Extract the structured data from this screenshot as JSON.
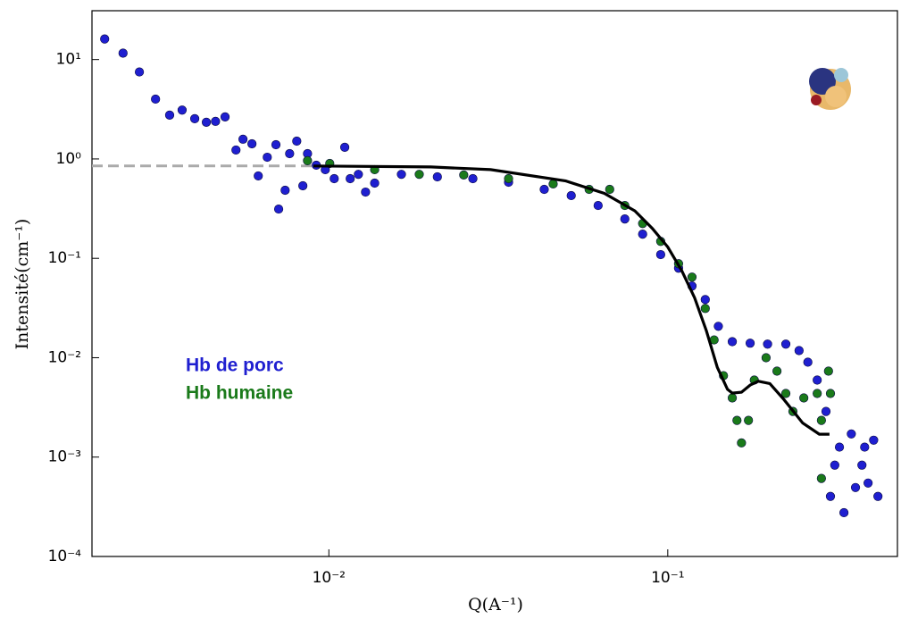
{
  "chart_data": {
    "type": "scatter",
    "xlabel": "Q(A⁻¹)",
    "ylabel": "Intensité(cm⁻¹)",
    "xscale": "log",
    "yscale": "log",
    "xlim": [
      0.002,
      0.476
    ],
    "ylim": [
      0.0001,
      31
    ],
    "xticks": [
      {
        "value": 0.01,
        "label": "10⁻²"
      },
      {
        "value": 0.1,
        "label": "10⁻¹"
      }
    ],
    "yticks": [
      {
        "value": 0.0001,
        "label": "10⁻⁴"
      },
      {
        "value": 0.001,
        "label": "10⁻³"
      },
      {
        "value": 0.01,
        "label": "10⁻²"
      },
      {
        "value": 0.1,
        "label": "10⁻¹"
      },
      {
        "value": 1,
        "label": "10⁰"
      },
      {
        "value": 10,
        "label": "10¹"
      }
    ],
    "series": [
      {
        "name": "Hb de porc",
        "color": "#1f1fd0",
        "x": [
          0.00218,
          0.00247,
          0.00276,
          0.00308,
          0.00339,
          0.00369,
          0.00402,
          0.00435,
          0.00463,
          0.00494,
          0.00532,
          0.00558,
          0.00593,
          0.00619,
          0.00658,
          0.00698,
          0.00711,
          0.00743,
          0.00766,
          0.00804,
          0.00838,
          0.00865,
          0.00918,
          0.00976,
          0.01037,
          0.01114,
          0.01156,
          0.01222,
          0.01283,
          0.01365,
          0.01637,
          0.0209,
          0.0266,
          0.0339,
          0.0432,
          0.0519,
          0.0623,
          0.0747,
          0.0843,
          0.0953,
          0.1076,
          0.1179,
          0.129,
          0.141,
          0.155,
          0.175,
          0.197,
          0.223,
          0.244,
          0.259,
          0.276,
          0.293,
          0.311,
          0.302,
          0.331,
          0.348,
          0.358,
          0.374,
          0.39,
          0.405,
          0.417,
          0.381,
          0.321
        ],
        "values": [
          16.1,
          11.6,
          7.5,
          4.0,
          2.76,
          3.1,
          2.54,
          2.34,
          2.39,
          2.65,
          1.23,
          1.58,
          1.42,
          0.675,
          1.04,
          1.39,
          0.313,
          0.484,
          1.13,
          1.51,
          0.537,
          1.13,
          0.865,
          0.78,
          0.633,
          1.31,
          0.633,
          0.7,
          0.464,
          0.571,
          0.7,
          0.66,
          0.633,
          0.583,
          0.494,
          0.428,
          0.34,
          0.249,
          0.175,
          0.109,
          0.0796,
          0.0526,
          0.0385,
          0.0207,
          0.0145,
          0.014,
          0.0137,
          0.0137,
          0.0118,
          0.00902,
          0.00596,
          0.00288,
          0.00083,
          0.000402,
          0.000276,
          0.00171,
          0.000494,
          0.00083,
          0.000548,
          0.00148,
          0.000402,
          0.00126,
          0.00126
        ]
      },
      {
        "name": "Hb humaine",
        "color": "#1a7a1a",
        "x": [
          0.00865,
          0.01006,
          0.01365,
          0.01848,
          0.025,
          0.0339,
          0.0459,
          0.0586,
          0.0674,
          0.0747,
          0.0843,
          0.0953,
          0.1076,
          0.1179,
          0.129,
          0.137,
          0.146,
          0.155,
          0.16,
          0.165,
          0.173,
          0.18,
          0.195,
          0.21,
          0.223,
          0.234,
          0.252,
          0.276,
          0.284,
          0.298,
          0.302,
          0.284
        ],
        "values": [
          0.96,
          0.9,
          0.78,
          0.7,
          0.69,
          0.633,
          0.56,
          0.494,
          0.494,
          0.34,
          0.224,
          0.148,
          0.0883,
          0.0647,
          0.0313,
          0.0151,
          0.0066,
          0.00394,
          0.00234,
          0.00139,
          0.00234,
          0.00596,
          0.01,
          0.00733,
          0.00437,
          0.00288,
          0.00394,
          0.00437,
          0.00234,
          0.00733,
          0.00437,
          0.00061
        ]
      }
    ],
    "fit": {
      "color": "#000000",
      "x": [
        0.009,
        0.02,
        0.03,
        0.05,
        0.065,
        0.08,
        0.09,
        0.1,
        0.11,
        0.12,
        0.13,
        0.14,
        0.15,
        0.155,
        0.165,
        0.175,
        0.185,
        0.2,
        0.22,
        0.25,
        0.28,
        0.3
      ],
      "values": [
        0.85,
        0.83,
        0.78,
        0.6,
        0.45,
        0.3,
        0.2,
        0.13,
        0.075,
        0.04,
        0.0186,
        0.008,
        0.0048,
        0.0044,
        0.0045,
        0.0053,
        0.0058,
        0.0055,
        0.0038,
        0.0022,
        0.0017,
        0.0017
      ]
    },
    "guide": {
      "color": "#aaaaaa",
      "x": [
        0.002,
        0.0095
      ],
      "values": [
        0.85,
        0.85
      ]
    }
  }
}
